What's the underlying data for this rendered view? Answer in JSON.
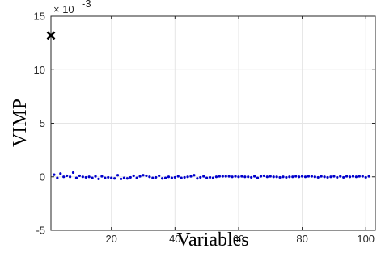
{
  "chart_data": {
    "type": "scatter",
    "title": "",
    "xlabel": "Variables",
    "ylabel": "VIMP",
    "xlim": [
      1,
      103
    ],
    "ylim": [
      -5,
      15
    ],
    "y_scale_exponent_label": "× 10",
    "y_scale_exponent_power": "-3",
    "x_ticks": [
      20,
      40,
      60,
      80,
      100
    ],
    "x_tick_labels": [
      "20",
      "40",
      "60",
      "80",
      "100"
    ],
    "y_ticks": [
      -5,
      0,
      5,
      10,
      15
    ],
    "y_tick_labels": [
      "-5",
      "0",
      "5",
      "10",
      "15"
    ],
    "grid": true,
    "colors": {
      "points": "#0000cc",
      "highlight": "#000000",
      "grid": "#e5e5e5",
      "axis": "#262626"
    },
    "highlight": {
      "x": 1,
      "y": 13.2,
      "marker": "x"
    },
    "series": [
      {
        "x": [
          2,
          3,
          4,
          5,
          6,
          7,
          8,
          9,
          10,
          11,
          12,
          13,
          14,
          15,
          16,
          17,
          18,
          19,
          20,
          21,
          22,
          23,
          24,
          25,
          26,
          27,
          28,
          29,
          30,
          31,
          32,
          33,
          34,
          35,
          36,
          37,
          38,
          39,
          40,
          41,
          42,
          43,
          44,
          45,
          46,
          47,
          48,
          49,
          50,
          51,
          52,
          53,
          54,
          55,
          56,
          57,
          58,
          59,
          60,
          61,
          62,
          63,
          64,
          65,
          66,
          67,
          68,
          69,
          70,
          71,
          72,
          73,
          74,
          75,
          76,
          77,
          78,
          79,
          80,
          81,
          82,
          83,
          84,
          85,
          86,
          87,
          88,
          89,
          90,
          91,
          92,
          93,
          94,
          95,
          96,
          97,
          98,
          99,
          100,
          101
        ],
        "y": [
          0.2,
          -0.1,
          0.3,
          0.0,
          0.1,
          0.0,
          0.4,
          -0.1,
          0.1,
          0.0,
          -0.05,
          0.0,
          -0.1,
          0.05,
          -0.2,
          0.05,
          -0.1,
          -0.05,
          -0.1,
          -0.15,
          0.15,
          -0.2,
          -0.1,
          -0.15,
          -0.05,
          0.1,
          -0.1,
          0.05,
          0.15,
          0.1,
          0.0,
          -0.1,
          -0.05,
          0.1,
          -0.15,
          -0.1,
          0.0,
          -0.1,
          -0.05,
          0.05,
          -0.1,
          -0.05,
          0.0,
          0.05,
          0.15,
          -0.15,
          -0.05,
          0.05,
          -0.1,
          -0.05,
          -0.1,
          0.0,
          0.05,
          0.05,
          0.05,
          0.05,
          0.0,
          0.05,
          0.0,
          0.05,
          0.0,
          0.0,
          -0.05,
          0.05,
          -0.1,
          0.05,
          0.1,
          0.0,
          0.05,
          0.0,
          0.0,
          -0.05,
          0.0,
          -0.05,
          0.0,
          0.0,
          0.05,
          0.0,
          0.05,
          0.0,
          0.05,
          0.05,
          0.0,
          -0.05,
          0.05,
          0.0,
          -0.05,
          0.0,
          0.05,
          -0.05,
          0.05,
          -0.05,
          0.05,
          0.0,
          0.05,
          0.0,
          0.05,
          0.05,
          -0.05,
          0.05
        ]
      }
    ]
  }
}
